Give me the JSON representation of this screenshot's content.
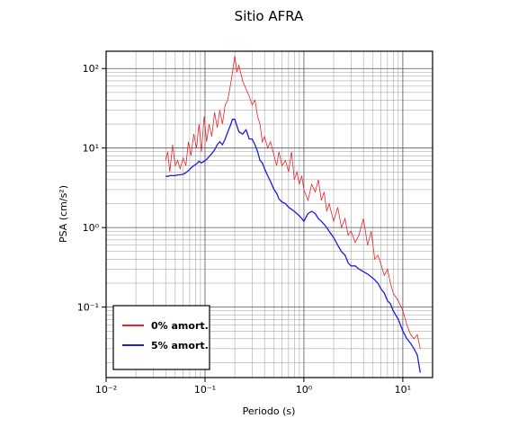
{
  "chart_data": {
    "type": "line",
    "title": "Sitio AFRA",
    "xlabel": "Periodo (s)",
    "ylabel": "PSA (cm/s²)",
    "xscale": "log",
    "yscale": "log",
    "grid": true,
    "legend": "lower left",
    "xlim": [
      0.01,
      20
    ],
    "ylim": [
      0.013,
      165
    ],
    "xticks": [
      {
        "value": 0.01,
        "label": "10⁻²"
      },
      {
        "value": 0.1,
        "label": "10⁻¹"
      },
      {
        "value": 1,
        "label": "10⁰"
      },
      {
        "value": 10,
        "label": "10¹"
      }
    ],
    "yticks": [
      {
        "value": 0.1,
        "label": "10⁻¹"
      },
      {
        "value": 1,
        "label": "10⁰"
      },
      {
        "value": 10,
        "label": "10¹"
      },
      {
        "value": 100,
        "label": "10²"
      }
    ],
    "x": [
      0.04,
      0.042,
      0.044,
      0.047,
      0.05,
      0.053,
      0.056,
      0.06,
      0.064,
      0.068,
      0.072,
      0.077,
      0.082,
      0.087,
      0.092,
      0.098,
      0.104,
      0.11,
      0.117,
      0.125,
      0.133,
      0.141,
      0.15,
      0.16,
      0.17,
      0.18,
      0.19,
      0.2,
      0.21,
      0.22,
      0.24,
      0.26,
      0.28,
      0.3,
      0.32,
      0.34,
      0.36,
      0.38,
      0.4,
      0.43,
      0.46,
      0.5,
      0.53,
      0.56,
      0.6,
      0.65,
      0.7,
      0.75,
      0.8,
      0.85,
      0.9,
      0.95,
      1.0,
      1.1,
      1.2,
      1.3,
      1.4,
      1.5,
      1.6,
      1.7,
      1.8,
      2.0,
      2.2,
      2.4,
      2.6,
      2.8,
      3.0,
      3.3,
      3.6,
      4.0,
      4.4,
      4.8,
      5.2,
      5.6,
      6.0,
      6.5,
      7.0,
      7.5,
      8.0,
      9.0,
      10,
      11,
      12,
      13,
      14,
      15
    ],
    "series": [
      {
        "name": "0% amort.",
        "color": "#e8242a",
        "values": [
          7,
          9,
          5,
          11,
          6,
          7,
          5.5,
          7.5,
          6,
          12,
          8,
          15,
          10,
          20,
          9,
          25,
          12,
          20,
          14,
          28,
          18,
          30,
          20,
          35,
          40,
          60,
          90,
          145,
          90,
          110,
          70,
          55,
          45,
          35,
          40,
          25,
          20,
          12,
          14,
          10,
          12,
          8,
          6,
          9,
          6,
          7,
          5,
          9,
          4,
          5,
          3.5,
          4.5,
          3,
          2.2,
          3.5,
          2.8,
          4,
          2.2,
          2.8,
          1.6,
          2,
          1.2,
          1.8,
          1,
          1.3,
          0.8,
          0.9,
          0.65,
          0.8,
          1.3,
          0.6,
          0.9,
          0.4,
          0.45,
          0.35,
          0.25,
          0.3,
          0.2,
          0.15,
          0.12,
          0.09,
          0.06,
          0.045,
          0.04,
          0.045,
          0.03
        ]
      },
      {
        "name": "5% amort.",
        "color": "#1c1ce0",
        "values": [
          4.4,
          4.4,
          4.5,
          4.5,
          4.5,
          4.6,
          4.6,
          4.7,
          4.9,
          5.2,
          5.6,
          6,
          6.3,
          6.8,
          6.5,
          6.8,
          7.2,
          7.8,
          8.5,
          9.5,
          11,
          12,
          11,
          13,
          16,
          19,
          23,
          23,
          19,
          16,
          15,
          17,
          13,
          13,
          11,
          9,
          7,
          6.5,
          5.5,
          4.5,
          3.8,
          3,
          2.7,
          2.3,
          2.1,
          2,
          1.8,
          1.7,
          1.6,
          1.5,
          1.4,
          1.3,
          1.2,
          1.5,
          1.6,
          1.5,
          1.3,
          1.2,
          1.1,
          1.0,
          0.9,
          0.75,
          0.6,
          0.5,
          0.45,
          0.36,
          0.33,
          0.33,
          0.3,
          0.28,
          0.26,
          0.24,
          0.22,
          0.2,
          0.17,
          0.15,
          0.12,
          0.11,
          0.09,
          0.07,
          0.05,
          0.04,
          0.035,
          0.03,
          0.025,
          0.015
        ]
      }
    ]
  }
}
